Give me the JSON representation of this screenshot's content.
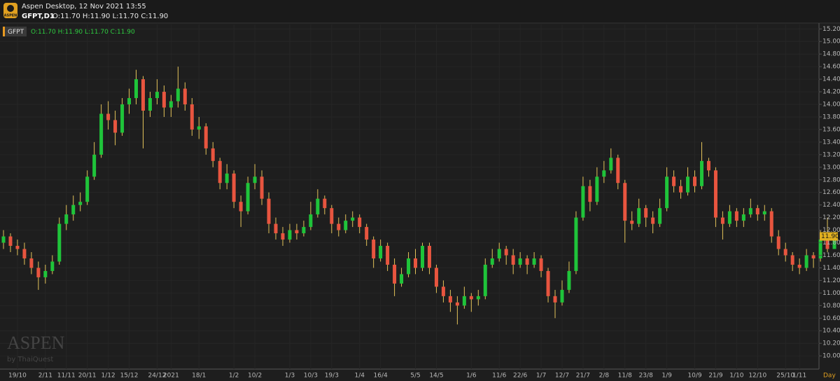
{
  "app_title": "Aspen Desktop, 12 Nov 2021 13:55",
  "logo_text": "ASPEN",
  "watermark": "ASPEN",
  "watermark_sub": "by ThaiQuest",
  "chart_data": {
    "type": "candlestick",
    "symbol_label": "GFPT,D1",
    "ohlc_text": "O:11.70 H:11.90 L:11.70 C:11.90",
    "legend_symbol": "GFPT",
    "period_label": "Day",
    "up_color": "#1fc43a",
    "down_color": "#e8553f",
    "wick_color": "#e3c35a",
    "grid": true,
    "ylim": [
      9.79,
      15.27
    ],
    "yticks": [
      {
        "value": 15.2,
        "label": "15.20"
      },
      {
        "value": 15.0,
        "label": "15.00"
      },
      {
        "value": 14.8,
        "label": "14.80"
      },
      {
        "value": 14.6,
        "label": "14.60"
      },
      {
        "value": 14.4,
        "label": "14.40"
      },
      {
        "value": 14.2,
        "label": "14.20"
      },
      {
        "value": 14.0,
        "label": "14.00"
      },
      {
        "value": 13.8,
        "label": "13.80"
      },
      {
        "value": 13.6,
        "label": "13.60"
      },
      {
        "value": 13.4,
        "label": "13.40"
      },
      {
        "value": 13.2,
        "label": "13.20"
      },
      {
        "value": 13.0,
        "label": "13.00"
      },
      {
        "value": 12.8,
        "label": "12.80"
      },
      {
        "value": 12.6,
        "label": "12.60"
      },
      {
        "value": 12.4,
        "label": "12.40"
      },
      {
        "value": 12.2,
        "label": "12.20"
      },
      {
        "value": 12.0,
        "label": "12.00"
      },
      {
        "value": 11.8,
        "label": "11.80"
      },
      {
        "value": 11.6,
        "label": "11.60"
      },
      {
        "value": 11.4,
        "label": "11.40"
      },
      {
        "value": 11.2,
        "label": "11.20"
      },
      {
        "value": 11.0,
        "label": "11.00"
      },
      {
        "value": 10.8,
        "label": "10.80"
      },
      {
        "value": 10.6,
        "label": "10.60"
      },
      {
        "value": 10.4,
        "label": "10.40"
      },
      {
        "value": 10.2,
        "label": "10.20"
      },
      {
        "value": 10.0,
        "label": "10.00"
      }
    ],
    "last_label": {
      "value": 11.9,
      "label": "11.90"
    },
    "categories": [
      null,
      null,
      "19/10",
      null,
      null,
      null,
      "2/11",
      null,
      null,
      "11/11",
      null,
      null,
      "20/11",
      null,
      null,
      "1/12",
      null,
      null,
      "15/12",
      null,
      null,
      null,
      "24/12",
      null,
      "2021",
      null,
      null,
      null,
      "18/1",
      null,
      null,
      null,
      null,
      "1/2",
      null,
      null,
      "10/2",
      null,
      null,
      null,
      null,
      "1/3",
      null,
      null,
      "10/3",
      null,
      null,
      "19/3",
      null,
      null,
      null,
      "1/4",
      null,
      null,
      "16/4",
      null,
      null,
      null,
      null,
      "5/5",
      null,
      null,
      "14/5",
      null,
      null,
      null,
      null,
      "1/6",
      null,
      null,
      null,
      "11/6",
      null,
      null,
      "22/6",
      null,
      null,
      "1/7",
      null,
      null,
      "12/7",
      null,
      null,
      "21/7",
      null,
      null,
      "2/8",
      null,
      null,
      "11/8",
      null,
      null,
      "23/8",
      null,
      null,
      "1/9",
      null,
      null,
      null,
      "10/9",
      null,
      null,
      "21/9",
      null,
      null,
      "1/10",
      null,
      null,
      "12/10",
      null,
      null,
      null,
      "25/10",
      null,
      "1/11",
      null,
      null,
      null,
      null,
      null
    ],
    "ohlc": [
      [
        11.8,
        12.0,
        11.7,
        11.9
      ],
      [
        11.9,
        11.95,
        11.65,
        11.75
      ],
      [
        11.75,
        11.85,
        11.6,
        11.7
      ],
      [
        11.7,
        11.8,
        11.45,
        11.55
      ],
      [
        11.55,
        11.65,
        11.3,
        11.4
      ],
      [
        11.4,
        11.5,
        11.05,
        11.25
      ],
      [
        11.25,
        11.45,
        11.15,
        11.35
      ],
      [
        11.35,
        11.6,
        11.3,
        11.5
      ],
      [
        11.5,
        12.2,
        11.45,
        12.1
      ],
      [
        12.1,
        12.4,
        12.0,
        12.25
      ],
      [
        12.25,
        12.55,
        12.15,
        12.4
      ],
      [
        12.4,
        12.6,
        12.3,
        12.45
      ],
      [
        12.45,
        12.95,
        12.4,
        12.85
      ],
      [
        12.85,
        13.4,
        12.8,
        13.2
      ],
      [
        13.2,
        14.0,
        13.15,
        13.85
      ],
      [
        13.85,
        14.05,
        13.6,
        13.75
      ],
      [
        13.75,
        13.9,
        13.35,
        13.55
      ],
      [
        13.55,
        14.1,
        13.5,
        14.0
      ],
      [
        14.0,
        14.25,
        13.85,
        14.1
      ],
      [
        14.1,
        14.55,
        14.0,
        14.4
      ],
      [
        14.4,
        14.45,
        13.3,
        13.9
      ],
      [
        13.9,
        14.2,
        13.8,
        14.1
      ],
      [
        14.1,
        14.4,
        14.0,
        14.2
      ],
      [
        14.2,
        14.3,
        13.8,
        13.95
      ],
      [
        13.95,
        14.15,
        13.8,
        14.05
      ],
      [
        14.05,
        14.6,
        13.95,
        14.25
      ],
      [
        14.25,
        14.35,
        13.9,
        14.0
      ],
      [
        14.0,
        14.1,
        13.5,
        13.6
      ],
      [
        13.6,
        13.8,
        13.45,
        13.65
      ],
      [
        13.65,
        13.7,
        13.2,
        13.3
      ],
      [
        13.3,
        13.4,
        13.0,
        13.1
      ],
      [
        13.1,
        13.15,
        12.65,
        12.75
      ],
      [
        12.75,
        13.05,
        12.65,
        12.9
      ],
      [
        12.9,
        12.95,
        12.35,
        12.45
      ],
      [
        12.45,
        12.55,
        12.05,
        12.3
      ],
      [
        12.3,
        12.85,
        12.25,
        12.75
      ],
      [
        12.75,
        13.05,
        12.65,
        12.85
      ],
      [
        12.85,
        12.95,
        12.4,
        12.5
      ],
      [
        12.5,
        12.6,
        11.95,
        12.1
      ],
      [
        12.1,
        12.2,
        11.85,
        11.95
      ],
      [
        11.95,
        12.05,
        11.75,
        11.85
      ],
      [
        11.85,
        12.1,
        11.8,
        12.0
      ],
      [
        12.0,
        12.1,
        11.85,
        11.95
      ],
      [
        11.95,
        12.15,
        11.9,
        12.05
      ],
      [
        12.05,
        12.45,
        12.0,
        12.25
      ],
      [
        12.25,
        12.65,
        12.2,
        12.5
      ],
      [
        12.5,
        12.55,
        12.25,
        12.35
      ],
      [
        12.35,
        12.4,
        11.95,
        12.1
      ],
      [
        12.1,
        12.2,
        11.9,
        12.0
      ],
      [
        12.0,
        12.25,
        11.95,
        12.15
      ],
      [
        12.15,
        12.3,
        12.05,
        12.2
      ],
      [
        12.2,
        12.25,
        11.95,
        12.05
      ],
      [
        12.05,
        12.1,
        11.75,
        11.85
      ],
      [
        11.85,
        11.9,
        11.4,
        11.55
      ],
      [
        11.55,
        11.85,
        11.5,
        11.75
      ],
      [
        11.75,
        11.8,
        11.35,
        11.45
      ],
      [
        11.45,
        11.55,
        10.95,
        11.15
      ],
      [
        11.15,
        11.4,
        11.1,
        11.3
      ],
      [
        11.3,
        11.65,
        11.25,
        11.55
      ],
      [
        11.55,
        11.7,
        11.3,
        11.4
      ],
      [
        11.4,
        11.8,
        11.35,
        11.75
      ],
      [
        11.75,
        11.8,
        11.3,
        11.4
      ],
      [
        11.4,
        11.45,
        11.0,
        11.1
      ],
      [
        11.1,
        11.2,
        10.85,
        10.95
      ],
      [
        10.95,
        11.05,
        10.7,
        10.85
      ],
      [
        10.85,
        10.95,
        10.5,
        10.8
      ],
      [
        10.8,
        11.1,
        10.75,
        10.95
      ],
      [
        10.95,
        11.0,
        10.7,
        10.9
      ],
      [
        10.9,
        11.05,
        10.8,
        10.95
      ],
      [
        10.95,
        11.55,
        10.9,
        11.45
      ],
      [
        11.45,
        11.7,
        11.4,
        11.55
      ],
      [
        11.55,
        11.8,
        11.5,
        11.7
      ],
      [
        11.7,
        11.75,
        11.45,
        11.6
      ],
      [
        11.6,
        11.7,
        11.3,
        11.45
      ],
      [
        11.45,
        11.65,
        11.4,
        11.55
      ],
      [
        11.55,
        11.6,
        11.3,
        11.45
      ],
      [
        11.45,
        11.65,
        11.4,
        11.55
      ],
      [
        11.55,
        11.6,
        11.25,
        11.35
      ],
      [
        11.35,
        11.4,
        10.85,
        10.95
      ],
      [
        10.95,
        11.05,
        10.6,
        10.85
      ],
      [
        10.85,
        11.2,
        10.8,
        11.05
      ],
      [
        11.05,
        11.5,
        11.0,
        11.35
      ],
      [
        11.35,
        12.3,
        11.3,
        12.2
      ],
      [
        12.2,
        12.85,
        12.15,
        12.7
      ],
      [
        12.7,
        12.8,
        12.3,
        12.45
      ],
      [
        12.45,
        13.0,
        12.4,
        12.85
      ],
      [
        12.85,
        13.1,
        12.75,
        12.95
      ],
      [
        12.95,
        13.3,
        12.9,
        13.15
      ],
      [
        13.15,
        13.2,
        12.65,
        12.75
      ],
      [
        12.75,
        12.8,
        11.8,
        12.15
      ],
      [
        12.15,
        12.3,
        12.0,
        12.1
      ],
      [
        12.1,
        12.5,
        12.05,
        12.35
      ],
      [
        12.35,
        12.4,
        12.05,
        12.2
      ],
      [
        12.2,
        12.3,
        11.95,
        12.1
      ],
      [
        12.1,
        12.5,
        12.05,
        12.35
      ],
      [
        12.35,
        13.0,
        12.3,
        12.85
      ],
      [
        12.85,
        12.95,
        12.6,
        12.7
      ],
      [
        12.7,
        12.8,
        12.5,
        12.6
      ],
      [
        12.6,
        13.0,
        12.55,
        12.85
      ],
      [
        12.85,
        12.95,
        12.6,
        12.7
      ],
      [
        12.7,
        13.4,
        12.65,
        13.1
      ],
      [
        13.1,
        13.15,
        12.85,
        12.95
      ],
      [
        12.95,
        13.0,
        12.05,
        12.2
      ],
      [
        12.2,
        12.3,
        11.85,
        12.1
      ],
      [
        12.1,
        12.4,
        12.05,
        12.3
      ],
      [
        12.3,
        12.35,
        12.05,
        12.15
      ],
      [
        12.15,
        12.35,
        12.05,
        12.25
      ],
      [
        12.25,
        12.5,
        12.2,
        12.35
      ],
      [
        12.35,
        12.4,
        12.15,
        12.25
      ],
      [
        12.25,
        12.4,
        12.15,
        12.3
      ],
      [
        12.3,
        12.35,
        11.8,
        11.9
      ],
      [
        11.9,
        12.0,
        11.6,
        11.7
      ],
      [
        11.7,
        11.8,
        11.5,
        11.6
      ],
      [
        11.6,
        11.65,
        11.35,
        11.45
      ],
      [
        11.45,
        11.55,
        11.3,
        11.4
      ],
      [
        11.4,
        11.7,
        11.35,
        11.6
      ],
      [
        11.6,
        11.65,
        11.4,
        11.55
      ],
      [
        11.55,
        12.0,
        11.5,
        11.85
      ],
      [
        11.85,
        12.2,
        11.65,
        11.7
      ],
      [
        11.7,
        11.9,
        11.7,
        11.9
      ]
    ]
  }
}
